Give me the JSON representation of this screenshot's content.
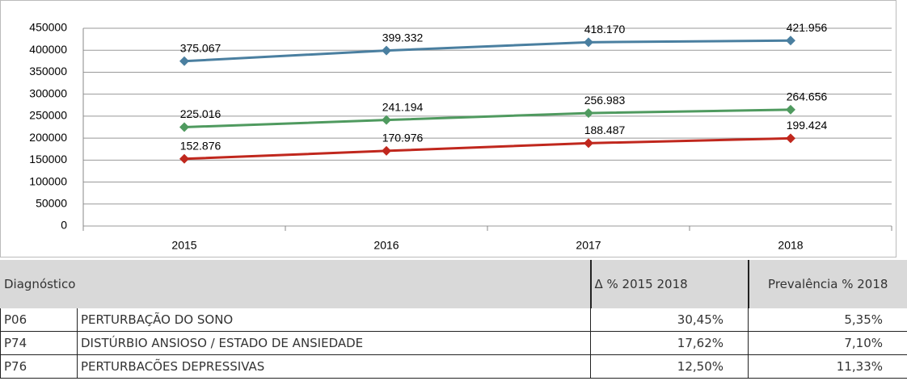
{
  "chart_data": {
    "type": "line",
    "categories": [
      "2015",
      "2016",
      "2017",
      "2018"
    ],
    "series": [
      {
        "color": "#4a7fa0",
        "values": [
          375067,
          399332,
          418170,
          421956
        ],
        "value_labels": [
          "375.067",
          "399.332",
          "418.170",
          "421.956"
        ]
      },
      {
        "color": "#4f9a5f",
        "values": [
          225016,
          241194,
          256983,
          264656
        ],
        "value_labels": [
          "225.016",
          "241.194",
          "256.983",
          "264.656"
        ]
      },
      {
        "color": "#c0271d",
        "values": [
          152876,
          170976,
          188487,
          199424
        ],
        "value_labels": [
          "152.876",
          "170.976",
          "188.487",
          "199.424"
        ]
      }
    ],
    "ylim": [
      0,
      450000
    ],
    "yticks": [
      0,
      50000,
      100000,
      150000,
      200000,
      250000,
      300000,
      350000,
      400000,
      450000
    ],
    "grid": true
  },
  "table": {
    "header": [
      "Diagnóstico",
      "Δ % 2015 2018",
      "Prevalência % 2018"
    ],
    "rows": [
      [
        "P06",
        "PERTURBAÇÃO DO SONO",
        "30,45%",
        "5,35%"
      ],
      [
        "P74",
        "DISTÚRBIO ANSIOSO / ESTADO DE ANSIEDADE",
        "17,62%",
        "7,10%"
      ],
      [
        "P76",
        "PERTURBACÕES DEPRESSIVAS",
        "12,50%",
        "11,33%"
      ]
    ]
  }
}
